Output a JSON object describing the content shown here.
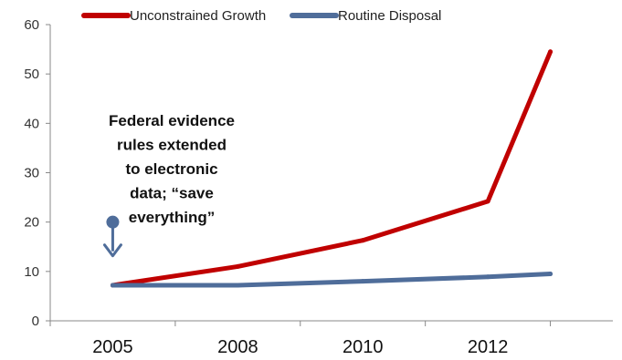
{
  "chart_data": {
    "type": "line",
    "categories": [
      "2005",
      "2008",
      "2010",
      "2012"
    ],
    "x_ticks": [
      "2005",
      "2008",
      "2010",
      "2012"
    ],
    "y_ticks": [
      "0",
      "10",
      "20",
      "30",
      "40",
      "50",
      "60"
    ],
    "ylim": [
      0,
      60
    ],
    "xlim": [
      0,
      4.5
    ],
    "grid": false,
    "legend_position": "top",
    "title": "",
    "xlabel": "",
    "ylabel": "",
    "series": [
      {
        "name": "Unconstrained Growth",
        "color": "#c00000",
        "x": [
          0.5,
          1.5,
          2.5,
          3.5,
          4.0
        ],
        "values": [
          7.2,
          11.0,
          16.3,
          24.2,
          54.5
        ]
      },
      {
        "name": "Routine Disposal",
        "color": "#4f6d9a",
        "x": [
          0.5,
          1.5,
          2.5,
          3.5,
          4.0
        ],
        "values": [
          7.2,
          7.2,
          8.0,
          8.9,
          9.5
        ]
      }
    ],
    "annotation": {
      "lines": [
        "Federal evidence",
        "rules extended",
        "to electronic",
        "data; “save",
        "everything”"
      ],
      "marker_x": 0.5,
      "marker_value": 20,
      "marker_color": "#4f6d9a"
    }
  }
}
